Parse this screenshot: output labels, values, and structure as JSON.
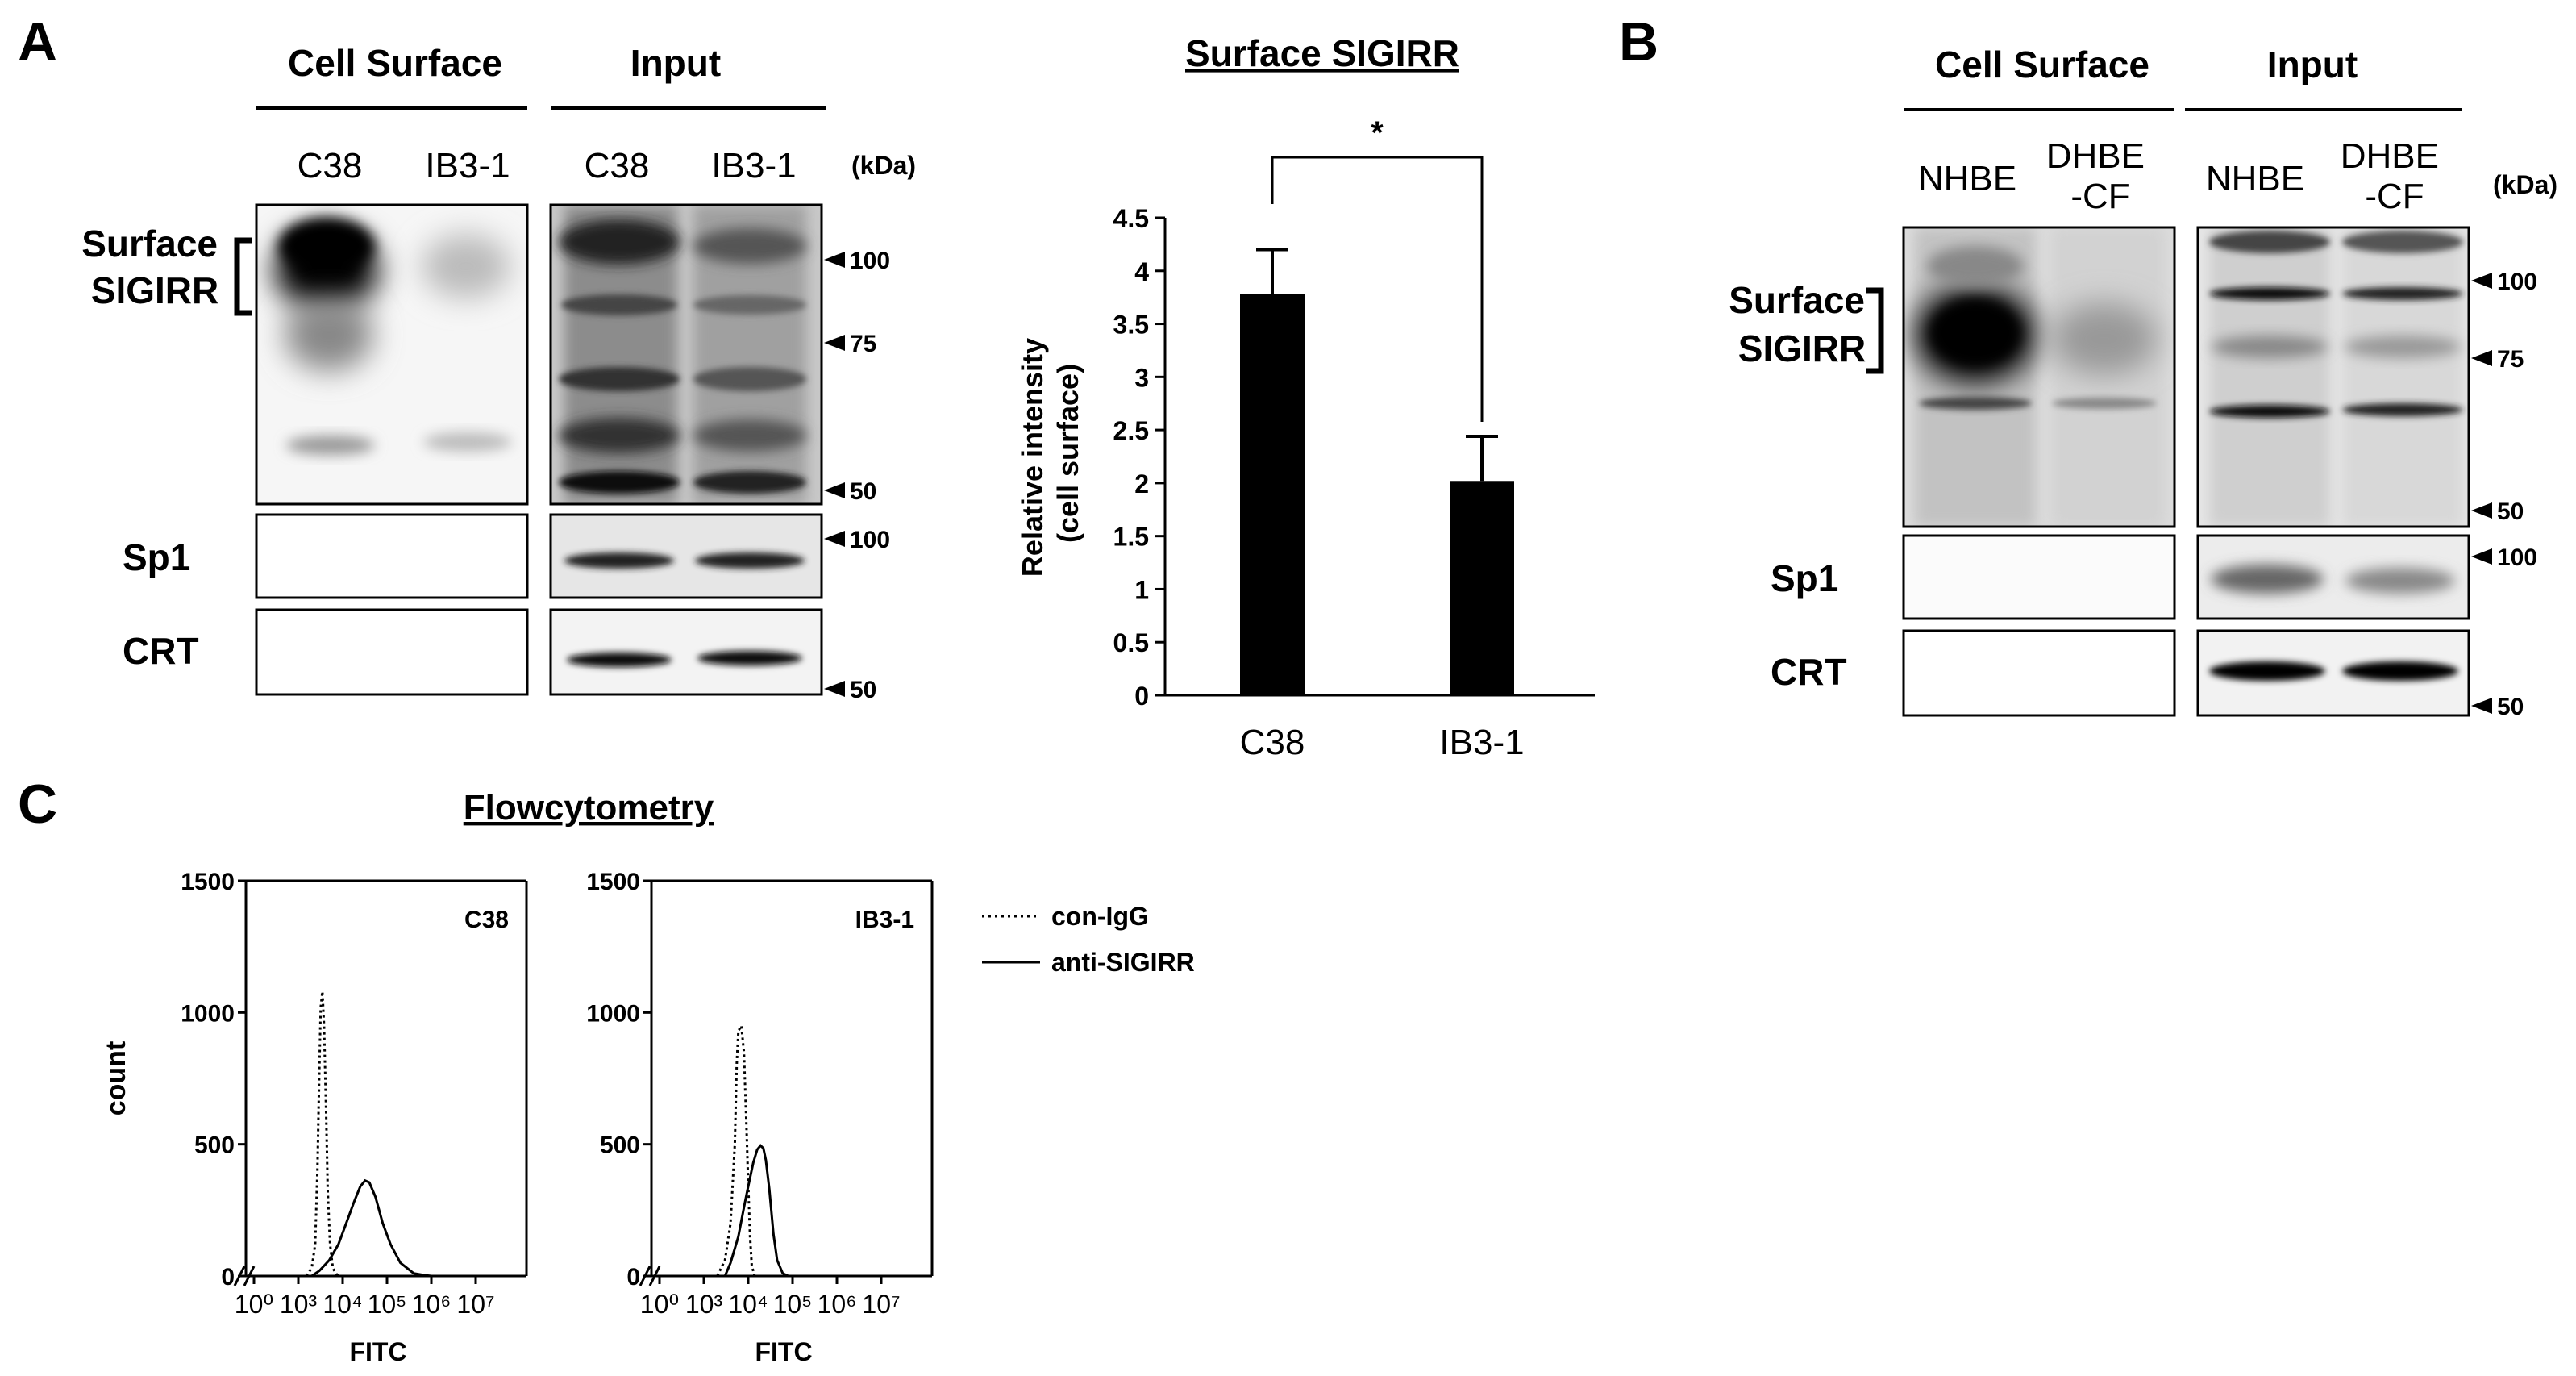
{
  "panels": {
    "a": {
      "letter": "A",
      "headers": {
        "cell_surface": "Cell Surface",
        "input": "Input"
      },
      "lanes": [
        "C38",
        "IB3-1",
        "C38",
        "IB3-1"
      ],
      "kda_unit": "(kDa)",
      "row_labels": {
        "surface": [
          "Surface",
          "SIGIRR"
        ],
        "sp1": "Sp1",
        "crt": "CRT"
      },
      "markers": {
        "top": [
          "100",
          "75",
          "50"
        ],
        "sp1": "100",
        "crt": "50"
      }
    },
    "b": {
      "letter": "B",
      "headers": {
        "cell_surface": "Cell Surface",
        "input": "Input"
      },
      "lanes": [
        [
          "NHBE"
        ],
        [
          "DHBE",
          "-CF"
        ],
        [
          "NHBE"
        ],
        [
          "DHBE",
          "-CF"
        ]
      ],
      "kda_unit": "(kDa)",
      "row_labels": {
        "surface": [
          "Surface",
          "SIGIRR"
        ],
        "sp1": "Sp1",
        "crt": "CRT"
      },
      "markers": {
        "top": [
          "100",
          "75",
          "50"
        ],
        "sp1": "100",
        "crt": "50"
      }
    },
    "c": {
      "letter": "C",
      "title": "Flowcytometry",
      "legend": {
        "dotted": "con-IgG",
        "solid": "anti-SIGIRR"
      }
    }
  },
  "chart_data": [
    {
      "type": "bar",
      "title": "Surface SIGIRR",
      "ylabel": [
        "Relative intensity",
        "(cell surface)"
      ],
      "categories": [
        "C38",
        "IB3-1"
      ],
      "values": [
        3.78,
        2.02
      ],
      "errors": [
        0.42,
        0.42
      ],
      "ylim": [
        0,
        4.5
      ],
      "yticks": [
        "0",
        "0.5",
        "1",
        "1.5",
        "2",
        "2.5",
        "3",
        "3.5",
        "4",
        "4.5"
      ],
      "significance": "*",
      "color": "#000000"
    },
    {
      "type": "line",
      "label": "C38",
      "xlabel": "FITC",
      "ylabel": "count",
      "xscale": "log",
      "xticks": [
        "10⁰",
        "10³",
        "10⁴",
        "10⁵",
        "10⁶",
        "10⁷"
      ],
      "ylim": [
        0,
        1500
      ],
      "yticks": [
        "0",
        "500",
        "1000",
        "1500"
      ],
      "series": [
        {
          "name": "con-IgG",
          "style": "dotted",
          "x": [
            1500,
            2000,
            2400,
            2700,
            3000,
            3200,
            3500,
            3800,
            4200,
            4600,
            5200,
            6000,
            7000,
            8000
          ],
          "y": [
            0,
            30,
            120,
            400,
            800,
            1020,
            1080,
            950,
            650,
            320,
            120,
            30,
            10,
            0
          ]
        },
        {
          "name": "anti-SIGIRR",
          "style": "solid",
          "x": [
            2000,
            3000,
            5000,
            8000,
            12000,
            18000,
            25000,
            32000,
            40000,
            55000,
            80000,
            120000,
            200000,
            400000,
            700000,
            1000000
          ],
          "y": [
            0,
            20,
            60,
            120,
            200,
            280,
            340,
            362,
            355,
            300,
            200,
            120,
            50,
            10,
            3,
            0
          ]
        }
      ]
    },
    {
      "type": "line",
      "label": "IB3-1",
      "xlabel": "FITC",
      "ylabel": "",
      "xscale": "log",
      "xticks": [
        "10⁰",
        "10³",
        "10⁴",
        "10⁵",
        "10⁶",
        "10⁷"
      ],
      "ylim": [
        0,
        1500
      ],
      "yticks": [
        "0",
        "500",
        "1000",
        "1500"
      ],
      "series": [
        {
          "name": "con-IgG",
          "style": "dotted",
          "x": [
            2000,
            3000,
            4000,
            5000,
            5500,
            6000,
            7000,
            8000,
            9000,
            10000,
            11000,
            12000,
            14000
          ],
          "y": [
            0,
            60,
            200,
            500,
            800,
            930,
            950,
            850,
            600,
            350,
            150,
            40,
            0
          ]
        },
        {
          "name": "anti-SIGIRR",
          "style": "solid",
          "x": [
            3000,
            4000,
            6000,
            8000,
            10000,
            13000,
            16000,
            19000,
            22000,
            25000,
            30000,
            37000,
            45000,
            60000,
            80000
          ],
          "y": [
            0,
            50,
            150,
            260,
            340,
            430,
            480,
            495,
            485,
            440,
            330,
            160,
            60,
            10,
            0
          ]
        }
      ]
    }
  ]
}
